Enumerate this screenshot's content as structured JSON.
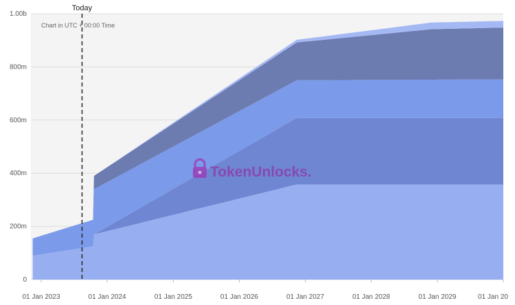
{
  "chart_data": {
    "type": "area",
    "stacked": true,
    "note": "Chart in UTC + 00:00 Time",
    "watermark": "TokenUnlocks.",
    "today_label": "Today",
    "today_date": "2023-08-15",
    "ylim": [
      0,
      1000
    ],
    "y_ticks": [
      {
        "value": 0,
        "label": "0"
      },
      {
        "value": 200,
        "label": "200m"
      },
      {
        "value": 400,
        "label": "400m"
      },
      {
        "value": 600,
        "label": "600m"
      },
      {
        "value": 800,
        "label": "800m"
      },
      {
        "value": 1000,
        "label": "1.00b"
      }
    ],
    "x_ticks": [
      {
        "date": "2023-01-01",
        "label": "01 Jan 2023"
      },
      {
        "date": "2024-01-01",
        "label": "01 Jan 2024"
      },
      {
        "date": "2025-01-01",
        "label": "01 Jan 2025"
      },
      {
        "date": "2026-01-01",
        "label": "01 Jan 2026"
      },
      {
        "date": "2027-01-01",
        "label": "01 Jan 2027"
      },
      {
        "date": "2028-01-01",
        "label": "01 Jan 2028"
      },
      {
        "date": "2029-01-01",
        "label": "01 Jan 2029"
      },
      {
        "date": "2030-01-01",
        "label": "01 Jan 20"
      }
    ],
    "grid": true,
    "series": [
      {
        "color": "#97aff0",
        "points": [
          [
            "2022-11-15",
            90
          ],
          [
            "2023-10-15",
            125
          ],
          [
            "2023-10-20",
            170
          ],
          [
            "2026-11-15",
            358
          ],
          [
            "2030-01-01",
            358
          ]
        ]
      },
      {
        "color": "#6f86d2",
        "points": [
          [
            "2022-11-15",
            0
          ],
          [
            "2023-10-15",
            0
          ],
          [
            "2023-10-20",
            0
          ],
          [
            "2026-11-15",
            250
          ],
          [
            "2030-01-01",
            250
          ]
        ]
      },
      {
        "color": "#7b9aea",
        "points": [
          [
            "2022-11-15",
            65
          ],
          [
            "2023-10-15",
            100
          ],
          [
            "2023-10-20",
            170
          ],
          [
            "2026-11-15",
            142
          ],
          [
            "2030-01-01",
            145
          ]
        ]
      },
      {
        "color": "#6c7bb0",
        "points": [
          [
            "2022-11-15",
            0
          ],
          [
            "2023-10-15",
            0
          ],
          [
            "2023-10-20",
            50
          ],
          [
            "2026-11-15",
            142
          ],
          [
            "2028-12-01",
            190
          ],
          [
            "2030-01-01",
            195
          ]
        ]
      },
      {
        "color": "#a4b8f4",
        "points": [
          [
            "2022-11-15",
            0
          ],
          [
            "2023-10-15",
            0
          ],
          [
            "2023-10-20",
            0
          ],
          [
            "2026-11-15",
            10
          ],
          [
            "2028-12-01",
            25
          ],
          [
            "2030-01-01",
            25
          ]
        ]
      }
    ]
  }
}
